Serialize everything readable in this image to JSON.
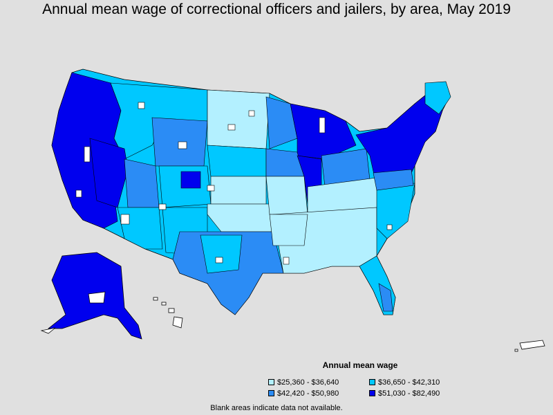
{
  "title": "Annual mean wage of correctional officers and jailers, by area, May 2019",
  "legend": {
    "title": "Annual mean wage",
    "items": [
      {
        "label": "$25,360 - $36,640",
        "color": "#b3f0ff"
      },
      {
        "label": "$36,650 - $42,310",
        "color": "#00c8ff"
      },
      {
        "label": "$42,420 - $50,980",
        "color": "#2b8cf5"
      },
      {
        "label": "$51,030 - $82,490",
        "color": "#0000ee"
      }
    ]
  },
  "note": "Blank areas indicate data not available.",
  "colors": {
    "background": "#e0e0e0",
    "no_data": "#ffffff",
    "border": "#000000"
  }
}
